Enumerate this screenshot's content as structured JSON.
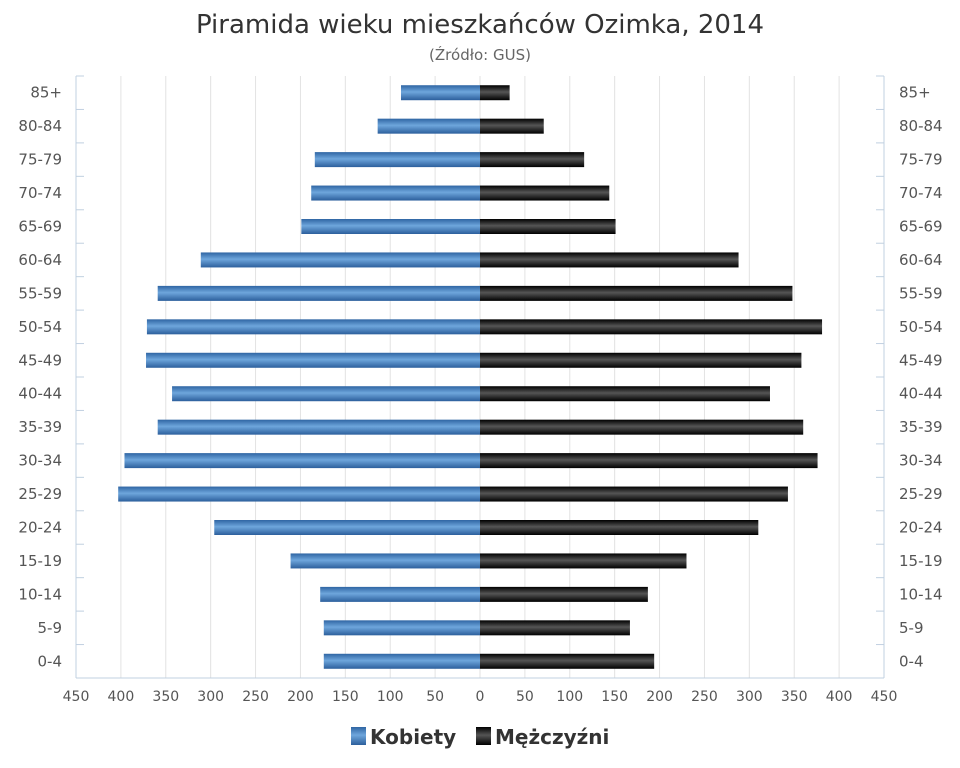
{
  "chart_data": {
    "type": "bar",
    "orientation": "horizontal-pyramid",
    "title": "Piramida wieku mieszkańców Ozimka, 2014",
    "subtitle": "(Źródło: GUS)",
    "categories": [
      "85+",
      "80-84",
      "75-79",
      "70-74",
      "65-69",
      "60-64",
      "55-59",
      "50-54",
      "45-49",
      "40-44",
      "35-39",
      "30-34",
      "25-29",
      "20-24",
      "15-19",
      "10-14",
      "5-9",
      "0-4"
    ],
    "series": [
      {
        "name": "Kobiety",
        "values": [
          88,
          114,
          184,
          188,
          199,
          311,
          359,
          371,
          372,
          343,
          359,
          396,
          403,
          296,
          211,
          178,
          174,
          174
        ]
      },
      {
        "name": "Mężczyźni",
        "values": [
          33,
          71,
          116,
          144,
          151,
          288,
          348,
          381,
          358,
          323,
          360,
          376,
          343,
          310,
          230,
          187,
          167,
          194
        ]
      }
    ],
    "x_ticks": [
      "450",
      "400",
      "350",
      "300",
      "250",
      "200",
      "150",
      "100",
      "50",
      "0",
      "50",
      "100",
      "150",
      "200",
      "250",
      "300",
      "350",
      "400",
      "450"
    ],
    "xlim": [
      -450,
      450
    ],
    "grid": true,
    "legend_position": "bottom-center",
    "colors": {
      "Kobiety": "#3f79b8",
      "Mężczyźni": "#1a1a1a"
    }
  }
}
